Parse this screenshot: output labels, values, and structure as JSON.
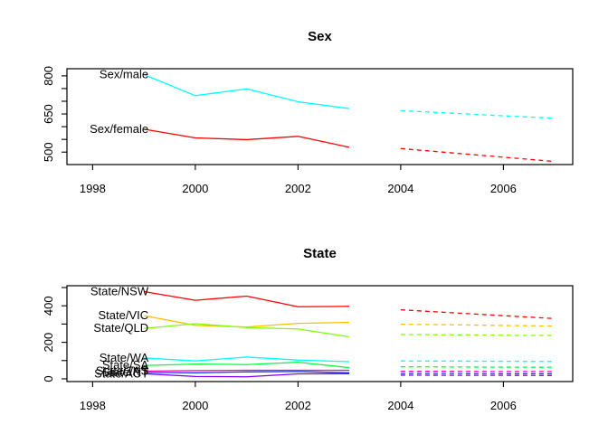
{
  "figure": {
    "background": "#ffffff",
    "axis_color": "#000000"
  },
  "chart_data": [
    {
      "type": "line",
      "key": "sex",
      "title": "Sex",
      "xlim": [
        1997.5,
        2007.35
      ],
      "ylim": [
        451,
        828
      ],
      "grid": false,
      "legend": "labels-on-lines",
      "xticks": [
        {
          "value": 1998,
          "label": "1998"
        },
        {
          "value": 2000,
          "label": "2000"
        },
        {
          "value": 2002,
          "label": "2002"
        },
        {
          "value": 2004,
          "label": "2004"
        },
        {
          "value": 2006,
          "label": "2006"
        }
      ],
      "yticks": [
        {
          "value": 500,
          "label": "500"
        },
        {
          "value": 550,
          "label": ""
        },
        {
          "value": 600,
          "label": ""
        },
        {
          "value": 650,
          "label": "650"
        },
        {
          "value": 700,
          "label": ""
        },
        {
          "value": 750,
          "label": ""
        },
        {
          "value": 800,
          "label": "800"
        }
      ],
      "x_history": [
        1999,
        2000,
        2001,
        2002,
        2003
      ],
      "x_forecast": [
        2004,
        2005,
        2006,
        2007
      ],
      "series": [
        {
          "label": "Sex/male",
          "color": "#00FFFF",
          "history": [
            805,
            722,
            749,
            698,
            671
          ],
          "forecast": [
            663,
            653,
            643,
            633
          ]
        },
        {
          "label": "Sex/female",
          "color": "#FF0000",
          "history": [
            590,
            556,
            549,
            562,
            519
          ],
          "forecast": [
            514,
            497,
            480,
            463
          ]
        }
      ]
    },
    {
      "type": "line",
      "key": "state",
      "title": "State",
      "xlim": [
        1997.5,
        2007.35
      ],
      "ylim": [
        -15,
        510
      ],
      "grid": false,
      "legend": "labels-on-lines",
      "xticks": [
        {
          "value": 1998,
          "label": "1998"
        },
        {
          "value": 2000,
          "label": "2000"
        },
        {
          "value": 2002,
          "label": "2002"
        },
        {
          "value": 2004,
          "label": "2004"
        },
        {
          "value": 2006,
          "label": "2006"
        }
      ],
      "yticks": [
        {
          "value": 0,
          "label": "0"
        },
        {
          "value": 100,
          "label": ""
        },
        {
          "value": 200,
          "label": "200"
        },
        {
          "value": 300,
          "label": ""
        },
        {
          "value": 400,
          "label": "400"
        },
        {
          "value": 500,
          "label": ""
        }
      ],
      "x_history": [
        1999,
        2000,
        2001,
        2002,
        2003
      ],
      "x_forecast": [
        2004,
        2005,
        2006,
        2007
      ],
      "series": [
        {
          "label": "State/NSW",
          "color": "#FF0000",
          "history": [
            478,
            430,
            453,
            395,
            397
          ],
          "forecast": [
            378,
            362,
            346,
            330
          ]
        },
        {
          "label": "State/VIC",
          "color": "#FFBF00",
          "history": [
            346,
            293,
            284,
            304,
            309
          ],
          "forecast": [
            299,
            296,
            292,
            289
          ]
        },
        {
          "label": "State/QLD",
          "color": "#80FF00",
          "history": [
            276,
            302,
            281,
            273,
            230
          ],
          "forecast": [
            243,
            241,
            239,
            237
          ]
        },
        {
          "label": "State/SA",
          "color": "#00FF40",
          "history": [
            73,
            81,
            78,
            91,
            61
          ],
          "forecast": [
            66,
            65,
            64,
            63
          ]
        },
        {
          "label": "State/WA",
          "color": "#00FFFF",
          "history": [
            114,
            98,
            119,
            103,
            94
          ],
          "forecast": [
            98,
            97,
            96,
            95
          ]
        },
        {
          "label": "State/NT",
          "color": "#0040FF",
          "history": [
            35,
            33,
            38,
            40,
            33
          ],
          "forecast": [
            29,
            29,
            28,
            28
          ]
        },
        {
          "label": "State/ACT",
          "color": "#8000FF",
          "history": [
            28,
            13,
            11,
            27,
            28
          ],
          "forecast": [
            20,
            19,
            19,
            18
          ]
        },
        {
          "label": "State/TAS",
          "color": "#FF00BF",
          "history": [
            42,
            45,
            47,
            47,
            47
          ],
          "forecast": [
            41,
            41,
            40,
            40
          ]
        }
      ]
    }
  ]
}
